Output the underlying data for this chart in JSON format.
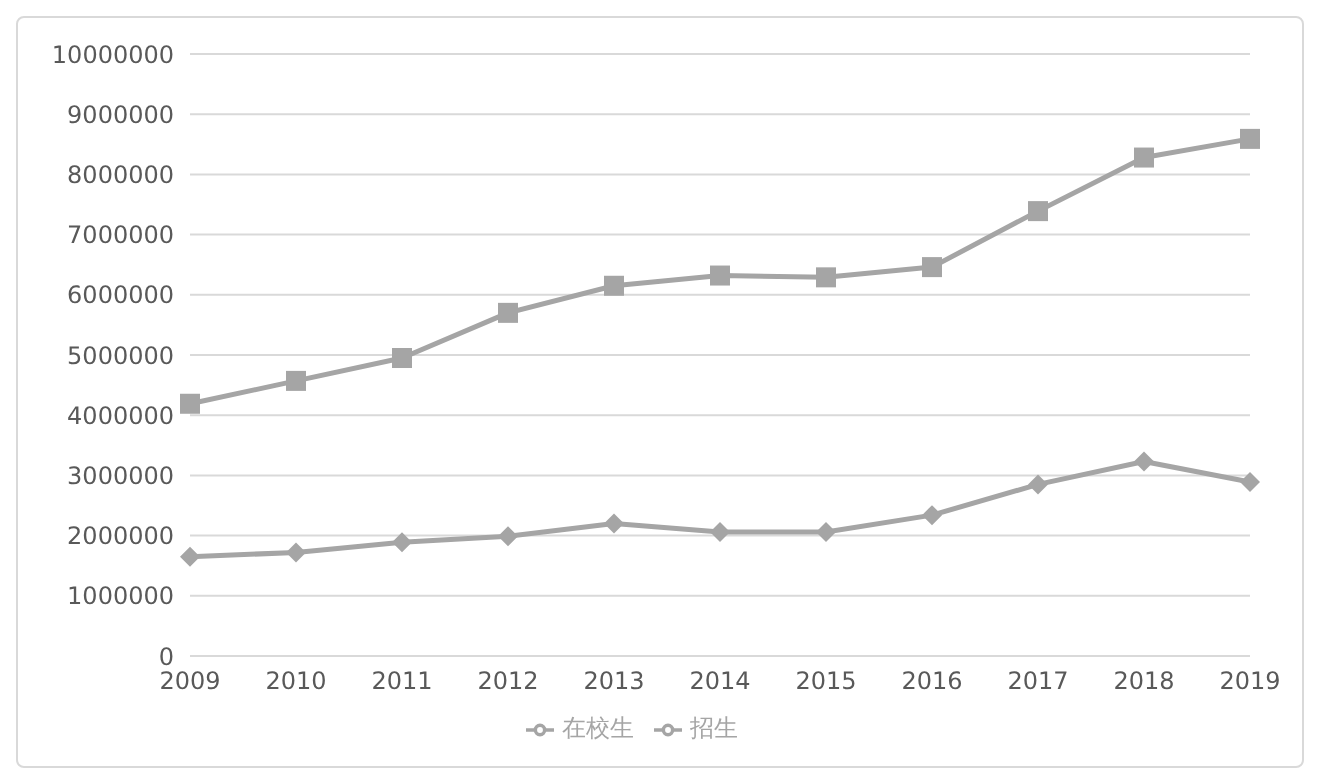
{
  "chart_data": {
    "type": "line",
    "categories": [
      "2009",
      "2010",
      "2011",
      "2012",
      "2013",
      "2014",
      "2015",
      "2016",
      "2017",
      "2018",
      "2019"
    ],
    "series": [
      {
        "name": "招生",
        "color": "#a5a5a5",
        "marker": "diamond",
        "values": [
          1650000,
          1720000,
          1890000,
          1990000,
          2200000,
          2060000,
          2060000,
          2340000,
          2850000,
          3230000,
          2890000
        ]
      },
      {
        "name": "在校生",
        "color": "#a5a5a5",
        "marker": "square",
        "values": [
          4190000,
          4570000,
          4950000,
          5700000,
          6150000,
          6320000,
          6290000,
          6460000,
          7390000,
          8280000,
          8590000
        ]
      }
    ],
    "ylim": [
      0,
      10000000
    ],
    "yticks": [
      0,
      1000000,
      2000000,
      3000000,
      4000000,
      5000000,
      6000000,
      7000000,
      8000000,
      9000000,
      10000000
    ],
    "grid": "y",
    "legend": "bottom"
  }
}
